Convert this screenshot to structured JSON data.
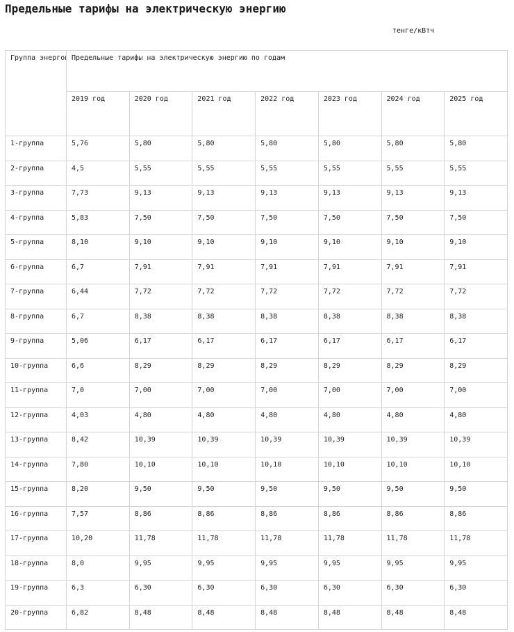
{
  "page": {
    "title": "Предельные тарифы на электрическую энергию",
    "units": "тенге/кВтч"
  },
  "table": {
    "group_header": "Группа\nэнергопроизво\nдящих\nорганизаций,\nреализующих\nэлектрическую\nэнергию",
    "span_header": "Предельные тарифы на электрическую энергию по годам",
    "year_headers": [
      "2019 год",
      "2020 год",
      "2021 год",
      "2022 год",
      "2023 год",
      "2024 год",
      "2025 год"
    ],
    "rows": [
      {
        "group": "1-группа",
        "values": [
          "5,76",
          "5,80",
          "5,80",
          "5,80",
          "5,80",
          "5,80",
          "5,80"
        ]
      },
      {
        "group": "2-группа",
        "values": [
          "4,5",
          "5,55",
          "5,55",
          "5,55",
          "5,55",
          "5,55",
          "5,55"
        ]
      },
      {
        "group": "3-группа",
        "values": [
          "7,73",
          "9,13",
          "9,13",
          "9,13",
          "9,13",
          "9,13",
          "9,13"
        ]
      },
      {
        "group": "4-группа",
        "values": [
          "5,83",
          "7,50",
          "7,50",
          "7,50",
          "7,50",
          "7,50",
          "7,50"
        ]
      },
      {
        "group": "5-группа",
        "values": [
          "8,10",
          "9,10",
          "9,10",
          "9,10",
          "9,10",
          "9,10",
          "9,10"
        ]
      },
      {
        "group": "6-группа",
        "values": [
          "6,7",
          "7,91",
          "7,91",
          "7,91",
          "7,91",
          "7,91",
          "7,91"
        ]
      },
      {
        "group": "7-группа",
        "values": [
          "6,44",
          "7,72",
          "7,72",
          "7,72",
          "7,72",
          "7,72",
          "7,72"
        ]
      },
      {
        "group": "8-группа",
        "values": [
          "6,7",
          "8,38",
          "8,38",
          "8,38",
          "8,38",
          "8,38",
          "8,38"
        ]
      },
      {
        "group": "9-группа",
        "values": [
          "5,06",
          "6,17",
          "6,17",
          "6,17",
          "6,17",
          "6,17",
          "6,17"
        ]
      },
      {
        "group": "10-группа",
        "values": [
          "6,6",
          "8,29",
          "8,29",
          "8,29",
          "8,29",
          "8,29",
          "8,29"
        ]
      },
      {
        "group": "11-группа",
        "values": [
          "7,0",
          "7,00",
          "7,00",
          "7,00",
          "7,00",
          "7,00",
          "7,00"
        ]
      },
      {
        "group": "12-группа",
        "values": [
          "4,03",
          "4,80",
          "4,80",
          "4,80",
          "4,80",
          "4,80",
          "4,80"
        ]
      },
      {
        "group": "13-группа",
        "values": [
          "8,42",
          "10,39",
          "10,39",
          "10,39",
          "10,39",
          "10,39",
          "10,39"
        ]
      },
      {
        "group": "14-группа",
        "values": [
          "7,80",
          "10,10",
          "10,10",
          "10,10",
          "10,10",
          "10,10",
          "10,10"
        ]
      },
      {
        "group": "15-группа",
        "values": [
          "8,20",
          "9,50",
          "9,50",
          "9,50",
          "9,50",
          "9,50",
          "9,50"
        ]
      },
      {
        "group": "16-группа",
        "values": [
          "7,57",
          "8,86",
          "8,86",
          "8,86",
          "8,86",
          "8,86",
          "8,86"
        ]
      },
      {
        "group": "17-группа",
        "values": [
          "10,20",
          "11,78",
          "11,78",
          "11,78",
          "11,78",
          "11,78",
          "11,78"
        ]
      },
      {
        "group": "18-группа",
        "values": [
          "8,0",
          "9,95",
          "9,95",
          "9,95",
          "9,95",
          "9,95",
          "9,95"
        ]
      },
      {
        "group": "19-группа",
        "values": [
          "6,3",
          "6,30",
          "6,30",
          "6,30",
          "6,30",
          "6,30",
          "6,30"
        ]
      },
      {
        "group": "20-группа",
        "values": [
          "6,82",
          "8,48",
          "8,48",
          "8,48",
          "8,48",
          "8,48",
          "8,48"
        ]
      }
    ]
  },
  "colors": {
    "text": "#1e1e1e",
    "border": "#d5d5d5",
    "background": "#ffffff"
  }
}
